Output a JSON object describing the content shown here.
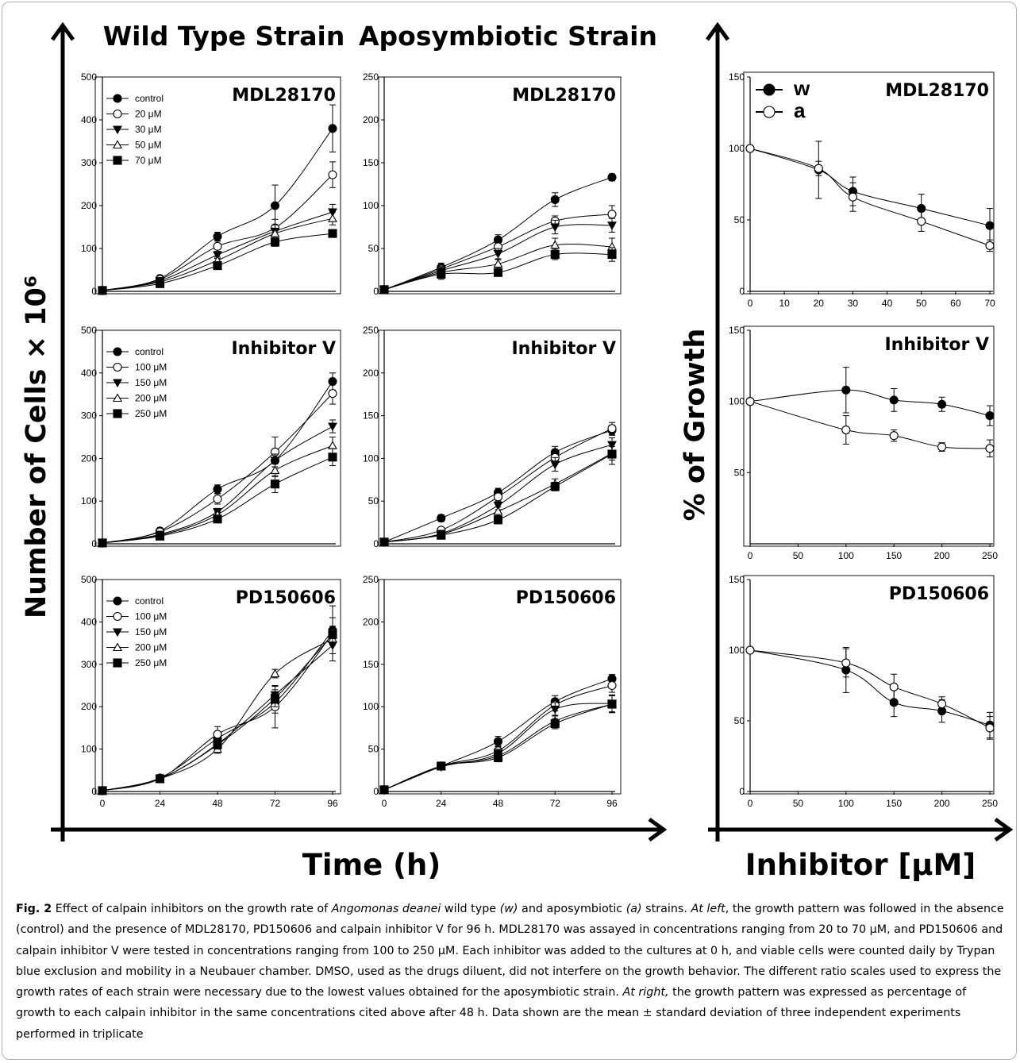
{
  "figure": {
    "col_titles": [
      "Wild Type Strain",
      "Aposymbiotic Strain"
    ],
    "left_y_axis_label": "Number of Cells × 10⁶",
    "left_x_axis_label": "Time (h)",
    "right_y_axis_label": "% of Growth",
    "right_x_axis_label": "Inhibitor [μM]"
  },
  "caption": {
    "label": "Fig. 2",
    "t1": " Effect of calpain inhibitors on the growth rate of ",
    "species": "Angomonas deanei",
    "t2": " wild type ",
    "w": "(w)",
    "t3": " and aposymbiotic ",
    "a": "(a)",
    "t4": " strains. ",
    "atleft": "At left",
    "t5": ", the growth pattern was followed in the absence (control) and the presence of MDL28170, PD150606 and calpain inhibitor V for 96 h. MDL28170 was assayed in concentrations ranging from 20 to 70 μM, and PD150606 and calpain inhibitor V were tested in concentrations ranging from 100 to 250 μM. Each inhibitor was added to the cultures at 0 h, and viable cells were counted daily by Trypan blue exclusion and mobility in a Neubauer chamber. DMSO, used as the drugs diluent, did not interfere on the growth behavior. The different ratio scales used to express the growth rates of each strain were necessary due to the lowest values obtained for the aposymbiotic strain. ",
    "atright": "At right,",
    "t6": " the growth pattern was expressed as percentage of growth to each calpain inhibitor in the same concentrations cited above after 48 h. Data shown are the mean ± standard deviation of three independent experiments performed in triplicate"
  },
  "chart_data": [
    {
      "type": "line",
      "title": "MDL28170",
      "x": [
        0,
        24,
        48,
        72,
        96
      ],
      "xticks": [],
      "ylim": [
        0,
        500
      ],
      "yticks": [
        0,
        100,
        200,
        300,
        400,
        500
      ],
      "legend": "top-left",
      "series": [
        {
          "name": "control",
          "marker": "circle-filled",
          "values": [
            2,
            30,
            128,
            200,
            380
          ],
          "err": [
            2,
            5,
            10,
            48,
            55
          ]
        },
        {
          "name": "20 μM",
          "marker": "circle-open",
          "values": [
            2,
            28,
            105,
            148,
            272
          ],
          "err": [
            2,
            4,
            12,
            20,
            30
          ]
        },
        {
          "name": "30 μM",
          "marker": "triangle-down-filled",
          "values": [
            2,
            25,
            85,
            140,
            185
          ],
          "err": [
            2,
            4,
            8,
            15,
            18
          ]
        },
        {
          "name": "50 μM",
          "marker": "triangle-up-open",
          "values": [
            2,
            22,
            72,
            135,
            170
          ],
          "err": [
            2,
            3,
            8,
            12,
            15
          ]
        },
        {
          "name": "70 μM",
          "marker": "square-filled",
          "values": [
            2,
            18,
            60,
            115,
            135
          ],
          "err": [
            2,
            3,
            6,
            10,
            8
          ]
        }
      ]
    },
    {
      "type": "line",
      "title": "MDL28170",
      "x": [
        0,
        24,
        48,
        72,
        96
      ],
      "xticks": [],
      "ylim": [
        0,
        250
      ],
      "yticks": [
        0,
        50,
        100,
        150,
        200,
        250
      ],
      "series": [
        {
          "name": "control",
          "marker": "circle-filled",
          "values": [
            2,
            28,
            60,
            107,
            133
          ],
          "err": [
            2,
            5,
            6,
            8,
            4
          ]
        },
        {
          "name": "20 μM",
          "marker": "circle-open",
          "values": [
            2,
            26,
            52,
            82,
            90
          ],
          "err": [
            2,
            5,
            6,
            6,
            10
          ]
        },
        {
          "name": "30 μM",
          "marker": "triangle-down-filled",
          "values": [
            2,
            24,
            44,
            75,
            77
          ],
          "err": [
            2,
            5,
            6,
            8,
            8
          ]
        },
        {
          "name": "50 μM",
          "marker": "triangle-up-open",
          "values": [
            2,
            22,
            32,
            54,
            52
          ],
          "err": [
            2,
            5,
            5,
            8,
            10
          ]
        },
        {
          "name": "70 μM",
          "marker": "square-filled",
          "values": [
            2,
            20,
            22,
            43,
            43
          ],
          "err": [
            2,
            6,
            4,
            6,
            8
          ]
        }
      ]
    },
    {
      "type": "line",
      "title": "MDL28170",
      "x": [
        0,
        20,
        30,
        50,
        70
      ],
      "xticks": [
        0,
        10,
        20,
        30,
        40,
        50,
        60,
        70
      ],
      "ylim": [
        0,
        150
      ],
      "yticks": [
        0,
        50,
        100,
        150
      ],
      "legend": "top-left",
      "series": [
        {
          "name": "w",
          "marker": "circle-filled",
          "values": [
            100,
            85,
            70,
            58,
            46
          ],
          "err": [
            0,
            20,
            10,
            10,
            12
          ]
        },
        {
          "name": "a",
          "marker": "circle-open",
          "values": [
            100,
            86,
            66,
            49,
            32
          ],
          "err": [
            0,
            5,
            10,
            7,
            4
          ]
        }
      ]
    },
    {
      "type": "line",
      "title": "Inhibitor V",
      "x": [
        0,
        24,
        48,
        72,
        96
      ],
      "xticks": [],
      "ylim": [
        0,
        500
      ],
      "yticks": [
        0,
        100,
        200,
        300,
        400,
        500
      ],
      "legend": "top-left",
      "series": [
        {
          "name": "control",
          "marker": "circle-filled",
          "values": [
            2,
            30,
            128,
            195,
            380
          ],
          "err": [
            2,
            5,
            10,
            15,
            20
          ]
        },
        {
          "name": "100 μM",
          "marker": "circle-open",
          "values": [
            2,
            28,
            105,
            215,
            352
          ],
          "err": [
            2,
            4,
            12,
            35,
            25
          ]
        },
        {
          "name": "150 μM",
          "marker": "triangle-down-filled",
          "values": [
            2,
            22,
            75,
            195,
            275
          ],
          "err": [
            2,
            3,
            8,
            15,
            15
          ]
        },
        {
          "name": "200 μM",
          "marker": "triangle-up-open",
          "values": [
            2,
            20,
            68,
            172,
            230
          ],
          "err": [
            2,
            3,
            6,
            15,
            20
          ]
        },
        {
          "name": "250 μM",
          "marker": "square-filled",
          "values": [
            2,
            18,
            58,
            140,
            203
          ],
          "err": [
            2,
            3,
            6,
            20,
            20
          ]
        }
      ]
    },
    {
      "type": "line",
      "title": "Inhibitor V",
      "x": [
        0,
        24,
        48,
        72,
        96
      ],
      "xticks": [],
      "ylim": [
        0,
        250
      ],
      "yticks": [
        0,
        50,
        100,
        150,
        200,
        250
      ],
      "series": [
        {
          "name": "control",
          "marker": "circle-filled",
          "values": [
            2,
            30,
            60,
            107,
            133
          ],
          "err": [
            2,
            4,
            5,
            7,
            6
          ]
        },
        {
          "name": "100 μM",
          "marker": "circle-open",
          "values": [
            2,
            16,
            55,
            101,
            135
          ],
          "err": [
            2,
            3,
            5,
            8,
            7
          ]
        },
        {
          "name": "150 μM",
          "marker": "triangle-down-filled",
          "values": [
            2,
            12,
            45,
            93,
            116
          ],
          "err": [
            2,
            3,
            5,
            8,
            8
          ]
        },
        {
          "name": "200 μM",
          "marker": "triangle-up-open",
          "values": [
            2,
            11,
            38,
            70,
            106
          ],
          "err": [
            2,
            3,
            5,
            6,
            8
          ]
        },
        {
          "name": "250 μM",
          "marker": "square-filled",
          "values": [
            2,
            10,
            28,
            67,
            105
          ],
          "err": [
            2,
            2,
            4,
            5,
            12
          ]
        }
      ]
    },
    {
      "type": "line",
      "title": "Inhibitor V",
      "x": [
        0,
        100,
        150,
        200,
        250
      ],
      "xticks": [
        0,
        50,
        100,
        150,
        200,
        250
      ],
      "ylim": [
        0,
        150
      ],
      "yticks": [
        50,
        100,
        150
      ],
      "series": [
        {
          "name": "w",
          "marker": "circle-filled",
          "values": [
            100,
            108,
            101,
            98,
            90
          ],
          "err": [
            0,
            16,
            8,
            5,
            7
          ]
        },
        {
          "name": "a",
          "marker": "circle-open",
          "values": [
            100,
            80,
            76,
            68,
            67
          ],
          "err": [
            0,
            10,
            4,
            3,
            6
          ]
        }
      ]
    },
    {
      "type": "line",
      "title": "PD150606",
      "x": [
        0,
        24,
        48,
        72,
        96
      ],
      "xticks": [
        0,
        24,
        48,
        72,
        96
      ],
      "ylim": [
        0,
        500
      ],
      "yticks": [
        0,
        100,
        200,
        300,
        400,
        500
      ],
      "legend": "top-left",
      "series": [
        {
          "name": "control",
          "marker": "circle-filled",
          "values": [
            2,
            32,
            125,
            210,
            380
          ],
          "err": [
            2,
            5,
            10,
            25,
            30
          ]
        },
        {
          "name": "100 μM",
          "marker": "circle-open",
          "values": [
            2,
            30,
            135,
            200,
            373
          ],
          "err": [
            2,
            4,
            18,
            50,
            65
          ]
        },
        {
          "name": "150 μM",
          "marker": "triangle-down-filled",
          "values": [
            2,
            30,
            112,
            228,
            345
          ],
          "err": [
            2,
            4,
            10,
            20,
            20
          ]
        },
        {
          "name": "200 μM",
          "marker": "triangle-up-open",
          "values": [
            2,
            30,
            100,
            278,
            360
          ],
          "err": [
            2,
            4,
            10,
            10,
            15
          ]
        },
        {
          "name": "250 μM",
          "marker": "square-filled",
          "values": [
            2,
            30,
            110,
            220,
            370
          ],
          "err": [
            2,
            4,
            10,
            20,
            20
          ]
        }
      ]
    },
    {
      "type": "line",
      "title": "PD150606",
      "x": [
        0,
        24,
        48,
        72,
        96
      ],
      "xticks": [
        0,
        24,
        48,
        72,
        96
      ],
      "ylim": [
        0,
        250
      ],
      "yticks": [
        0,
        50,
        100,
        150,
        200,
        250
      ],
      "series": [
        {
          "name": "control",
          "marker": "circle-filled",
          "values": [
            2,
            30,
            59,
            106,
            133
          ],
          "err": [
            2,
            3,
            6,
            7,
            5
          ]
        },
        {
          "name": "100 μM",
          "marker": "circle-open",
          "values": [
            2,
            30,
            48,
            102,
            125
          ],
          "err": [
            2,
            3,
            6,
            7,
            8
          ]
        },
        {
          "name": "150 μM",
          "marker": "triangle-down-filled",
          "values": [
            2,
            29,
            45,
            97,
            104
          ],
          "err": [
            2,
            3,
            5,
            8,
            10
          ]
        },
        {
          "name": "200 μM",
          "marker": "triangle-up-open",
          "values": [
            2,
            30,
            42,
            83,
            103
          ],
          "err": [
            2,
            3,
            5,
            7,
            10
          ]
        },
        {
          "name": "250 μM",
          "marker": "square-filled",
          "values": [
            2,
            30,
            40,
            80,
            103
          ],
          "err": [
            2,
            3,
            5,
            6,
            10
          ]
        }
      ]
    },
    {
      "type": "line",
      "title": "PD150606",
      "x": [
        0,
        100,
        150,
        200,
        250
      ],
      "xticks": [
        0,
        50,
        100,
        150,
        200,
        250
      ],
      "ylim": [
        0,
        150
      ],
      "yticks": [
        0,
        50,
        100,
        150
      ],
      "series": [
        {
          "name": "w",
          "marker": "circle-filled",
          "values": [
            100,
            86,
            63,
            57,
            47
          ],
          "err": [
            0,
            16,
            10,
            8,
            9
          ]
        },
        {
          "name": "a",
          "marker": "circle-open",
          "values": [
            100,
            91,
            74,
            62,
            45
          ],
          "err": [
            0,
            10,
            9,
            5,
            8
          ]
        }
      ]
    }
  ]
}
